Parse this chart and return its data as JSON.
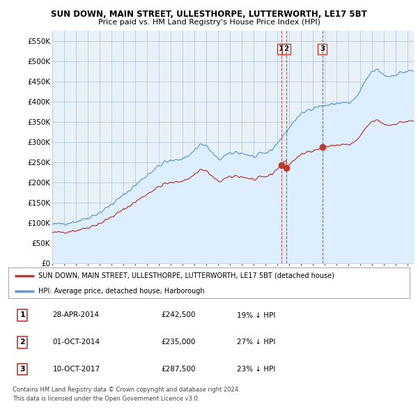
{
  "title": "SUN DOWN, MAIN STREET, ULLESTHORPE, LUTTERWORTH, LE17 5BT",
  "subtitle": "Price paid vs. HM Land Registry's House Price Index (HPI)",
  "ylabel_ticks": [
    "£0",
    "£50K",
    "£100K",
    "£150K",
    "£200K",
    "£250K",
    "£300K",
    "£350K",
    "£400K",
    "£450K",
    "£500K",
    "£550K"
  ],
  "ylim": [
    0,
    575000
  ],
  "xlim_start": 1995.0,
  "xlim_end": 2025.5,
  "hpi_color": "#5b9bd5",
  "hpi_fill": "#ddeeff",
  "price_color": "#c0392b",
  "vline_color": "#c0392b",
  "bg_color": "#ffffff",
  "grid_color": "#b8c8d8",
  "chart_bg": "#e8f0f8",
  "sales": [
    {
      "date_num": 2014.33,
      "price": 242500,
      "label": "1"
    },
    {
      "date_num": 2014.75,
      "price": 235000,
      "label": "2"
    },
    {
      "date_num": 2017.78,
      "price": 287500,
      "label": "3"
    }
  ],
  "legend_property": "SUN DOWN, MAIN STREET, ULLESTHORPE, LUTTERWORTH, LE17 5BT (detached house)",
  "legend_hpi": "HPI: Average price, detached house, Harborough",
  "footer1": "Contains HM Land Registry data © Crown copyright and database right 2024.",
  "footer2": "This data is licensed under the Open Government Licence v3.0.",
  "table_entries": [
    {
      "num": "1",
      "date": "28-APR-2014",
      "price": "£242,500",
      "pct": "19% ↓ HPI"
    },
    {
      "num": "2",
      "date": "01-OCT-2014",
      "price": "£235,000",
      "pct": "27% ↓ HPI"
    },
    {
      "num": "3",
      "date": "10-OCT-2017",
      "price": "£287,500",
      "pct": "23% ↓ HPI"
    }
  ]
}
